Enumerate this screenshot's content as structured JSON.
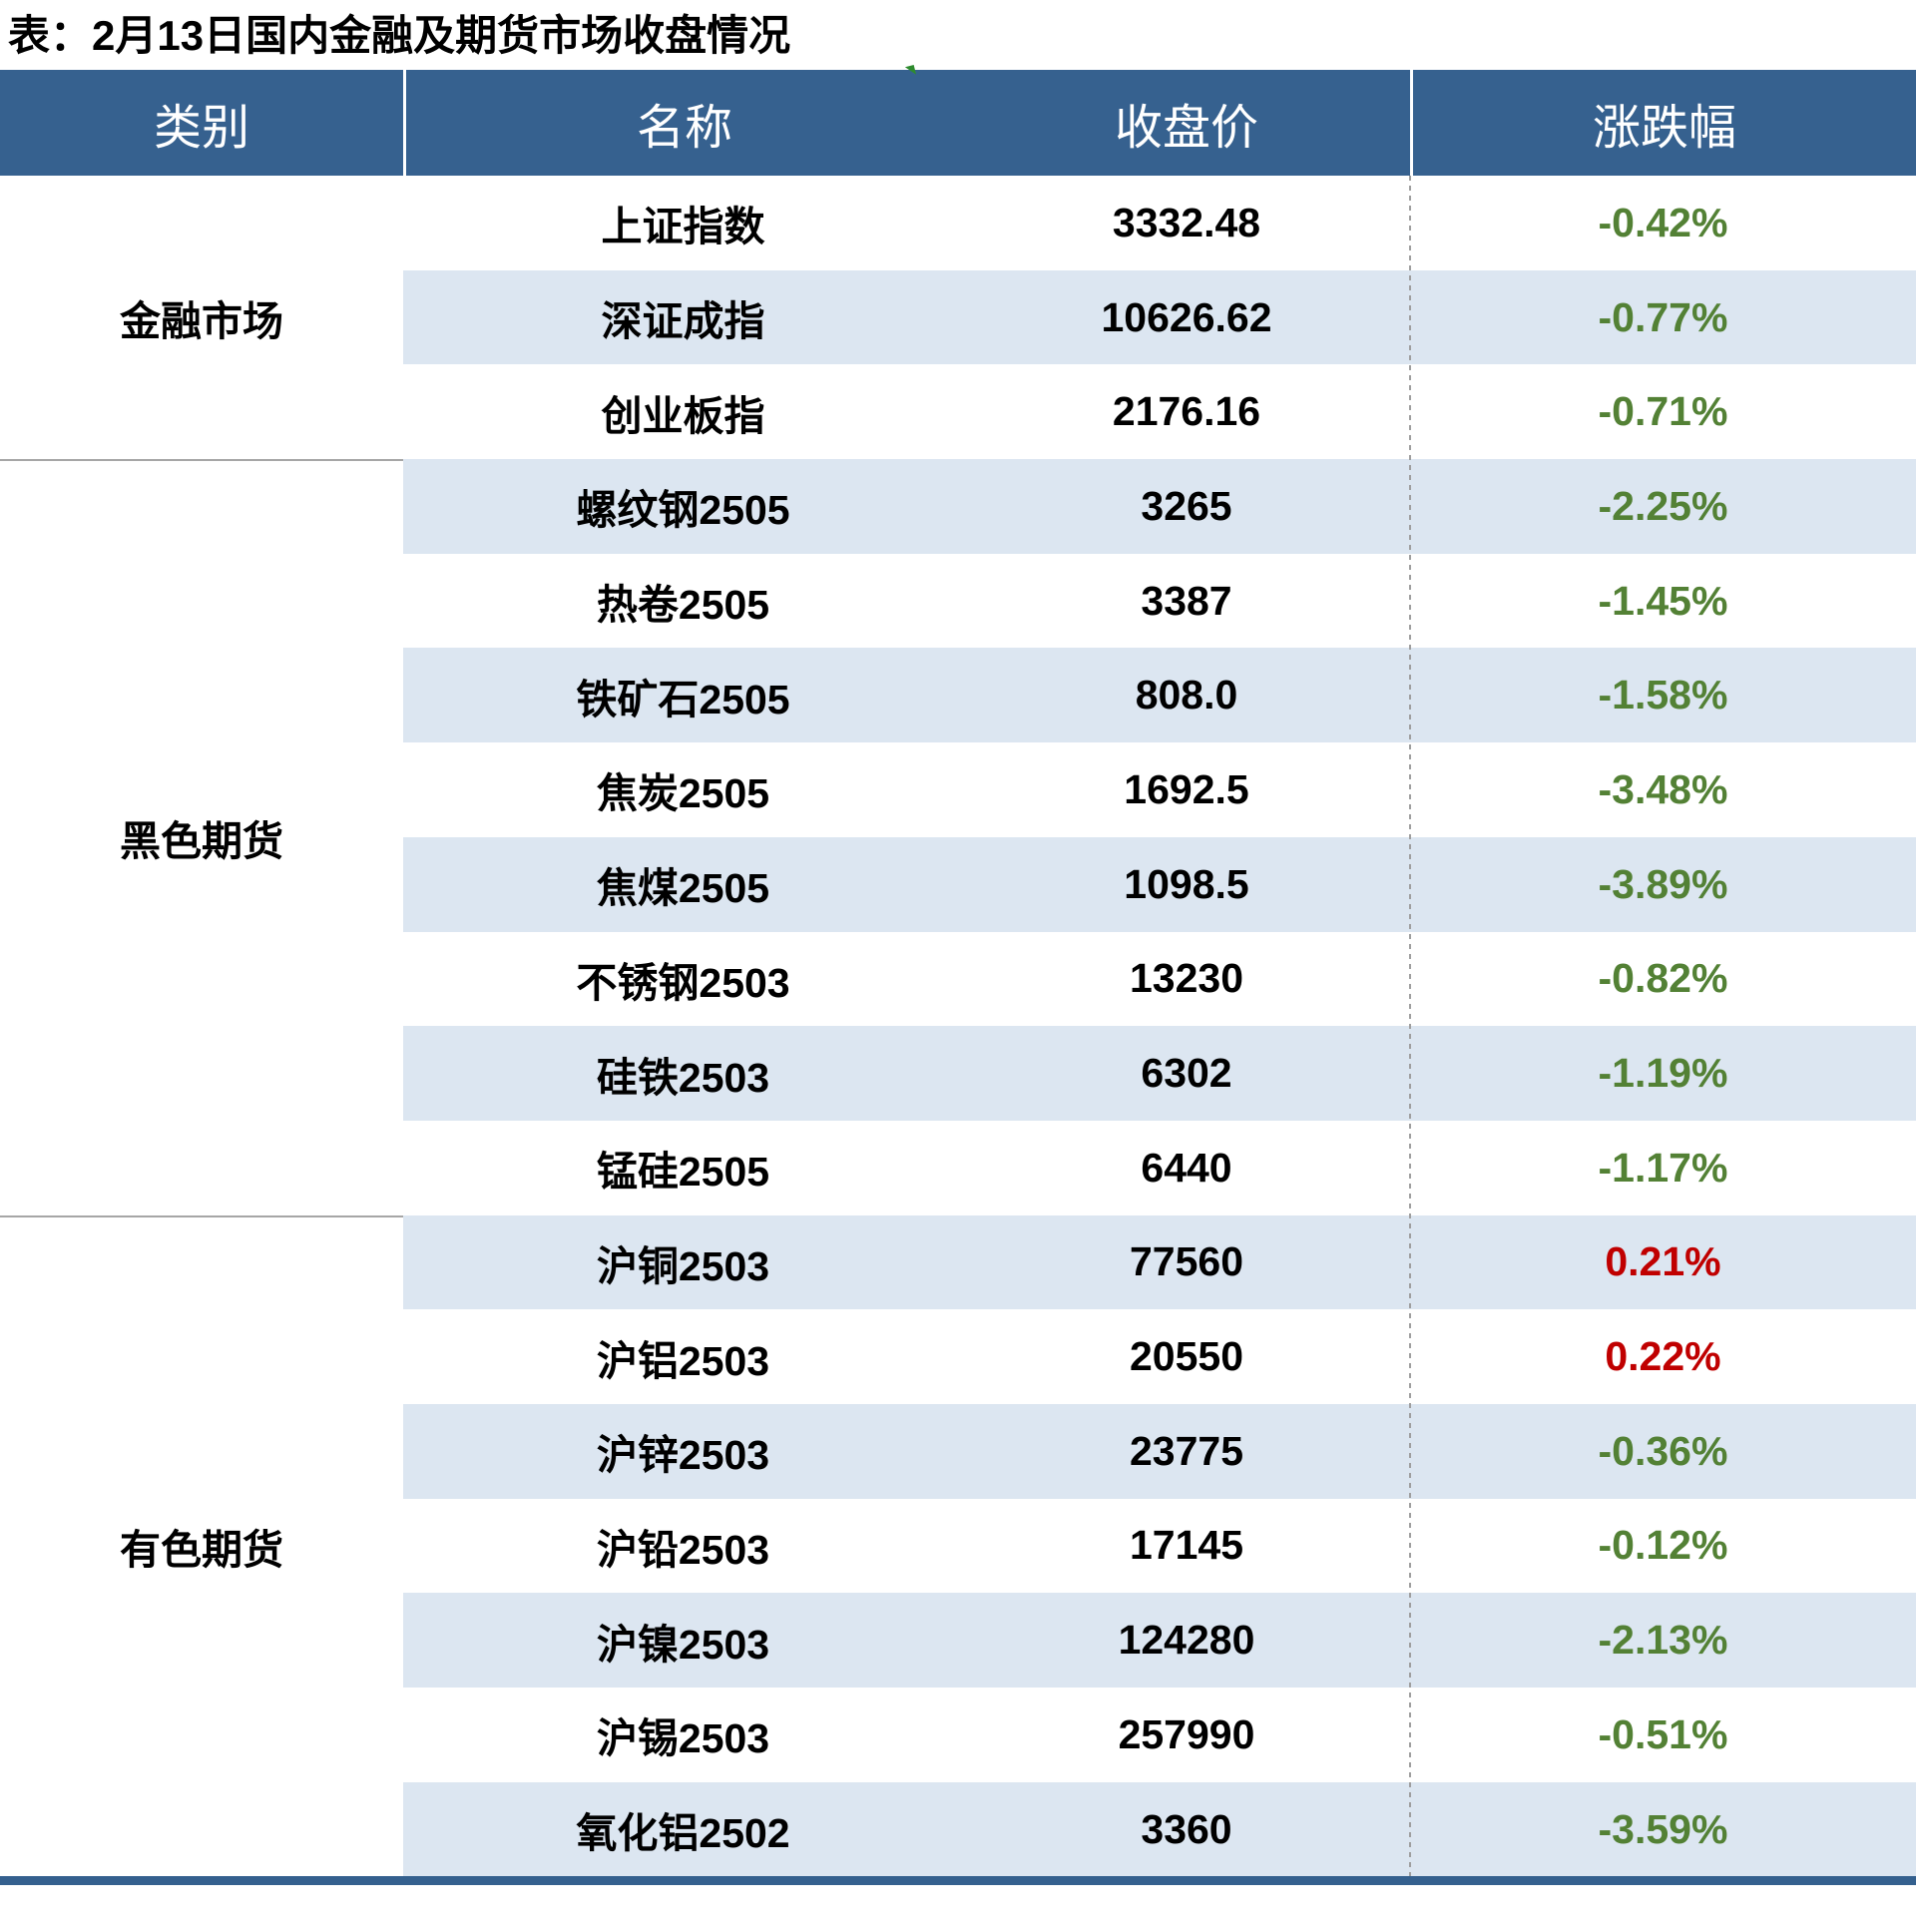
{
  "title": "表：2月13日国内金融及期货市场收盘情况",
  "chart_data": {
    "type": "table",
    "columns": [
      "类别",
      "名称",
      "收盘价",
      "涨跌幅"
    ],
    "sections": [
      {
        "category": "金融市场",
        "rows": [
          {
            "name": "上证指数",
            "close": "3332.48",
            "change": "-0.42%"
          },
          {
            "name": "深证成指",
            "close": "10626.62",
            "change": "-0.77%"
          },
          {
            "name": "创业板指",
            "close": "2176.16",
            "change": "-0.71%"
          }
        ]
      },
      {
        "category": "黑色期货",
        "rows": [
          {
            "name": "螺纹钢2505",
            "close": "3265",
            "change": "-2.25%"
          },
          {
            "name": "热卷2505",
            "close": "3387",
            "change": "-1.45%"
          },
          {
            "name": "铁矿石2505",
            "close": "808.0",
            "change": "-1.58%"
          },
          {
            "name": "焦炭2505",
            "close": "1692.5",
            "change": "-3.48%"
          },
          {
            "name": "焦煤2505",
            "close": "1098.5",
            "change": "-3.89%"
          },
          {
            "name": "不锈钢2503",
            "close": "13230",
            "change": "-0.82%"
          },
          {
            "name": "硅铁2503",
            "close": "6302",
            "change": "-1.19%"
          },
          {
            "name": "锰硅2505",
            "close": "6440",
            "change": "-1.17%"
          }
        ]
      },
      {
        "category": "有色期货",
        "rows": [
          {
            "name": "沪铜2503",
            "close": "77560",
            "change": "0.21%"
          },
          {
            "name": "沪铝2503",
            "close": "20550",
            "change": "0.22%"
          },
          {
            "name": "沪锌2503",
            "close": "23775",
            "change": "-0.36%"
          },
          {
            "name": "沪铅2503",
            "close": "17145",
            "change": "-0.12%"
          },
          {
            "name": "沪镍2503",
            "close": "124280",
            "change": "-2.13%"
          },
          {
            "name": "沪锡2503",
            "close": "257990",
            "change": "-0.51%"
          },
          {
            "name": "氧化铝2502",
            "close": "3360",
            "change": "-3.59%"
          }
        ]
      }
    ],
    "layout": {
      "striped_rows": "even",
      "change_negative_color_rule": "green",
      "change_positive_color_rule": "red"
    }
  },
  "colors": {
    "header_bg": "#36618F",
    "header_text": "#FFFFFF",
    "stripe": "#DCE6F1",
    "up_red": "#C00000",
    "down_green": "#538135",
    "bottom_bar": "#34608E",
    "dash": "#9E9E9E",
    "section_line": "#A6A6A6",
    "mark_green": "#2E8B2E"
  }
}
